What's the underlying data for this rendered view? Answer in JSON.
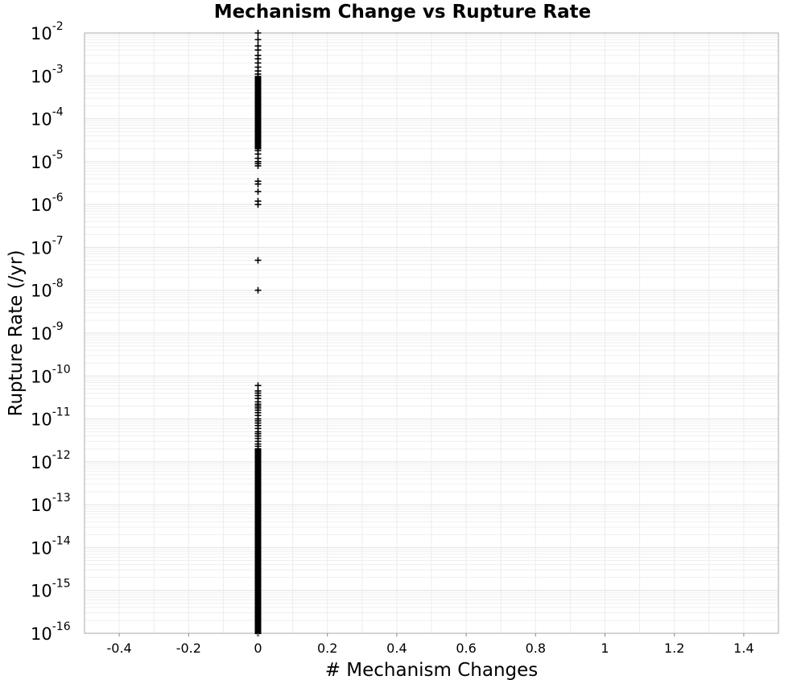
{
  "chart_data": {
    "type": "scatter",
    "title": "Mechanism Change vs Rupture Rate",
    "xlabel": "# Mechanism Changes",
    "ylabel": "Rupture Rate (/yr)",
    "x_scale": "linear",
    "y_scale": "log",
    "xlim": [
      -0.5,
      1.5
    ],
    "ylim": [
      1e-16,
      0.01
    ],
    "x_ticks": [
      "-0.4",
      "-0.2",
      "0",
      "0.2",
      "0.4",
      "0.6",
      "0.8",
      "1",
      "1.2",
      "1.4"
    ],
    "x_tick_values": [
      -0.4,
      -0.2,
      0,
      0.2,
      0.4,
      0.6,
      0.8,
      1,
      1.2,
      1.4
    ],
    "y_tick_exponents": [
      -2,
      -3,
      -4,
      -5,
      -6,
      -7,
      -8,
      -9,
      -10,
      -11,
      -12,
      -13,
      -14,
      -15,
      -16
    ],
    "y_tick_base": "10",
    "grid": true,
    "marker": "plus",
    "marker_color": "#000000",
    "series": [
      {
        "x": [
          0,
          0,
          0,
          0,
          0,
          0,
          0,
          0,
          0,
          0,
          0,
          0,
          0,
          0,
          0,
          0,
          0,
          0,
          0,
          0,
          0,
          0,
          0,
          0,
          0,
          0,
          0,
          0,
          0,
          0,
          0,
          0,
          0,
          0,
          0,
          0,
          0,
          0,
          0,
          0,
          0,
          0,
          0,
          0,
          0,
          0,
          0,
          0,
          0,
          0,
          0,
          0,
          0,
          0,
          0,
          0,
          0,
          0,
          0,
          0,
          0,
          0,
          0,
          0,
          0,
          0,
          0,
          0,
          0,
          0,
          0,
          0,
          0,
          0,
          0,
          0,
          0,
          0,
          0,
          0,
          0,
          0,
          0,
          0,
          0,
          0,
          0,
          0,
          0,
          0,
          0,
          0,
          0,
          0,
          0,
          0,
          0,
          0,
          0,
          0,
          0,
          0,
          0,
          0,
          0,
          0,
          0,
          0,
          0,
          0,
          0,
          0,
          0,
          0,
          0,
          0,
          0,
          0,
          0,
          0,
          0,
          0,
          0,
          0,
          0,
          0,
          0,
          0,
          0,
          0,
          0,
          0,
          0,
          0,
          0,
          0,
          0,
          0,
          0,
          0,
          0,
          0,
          0,
          0,
          0,
          0,
          0,
          0,
          0,
          0,
          0,
          0,
          0,
          0,
          0,
          0,
          0,
          0,
          0,
          0,
          0,
          0,
          0,
          0,
          0,
          0
        ],
        "y": [
          0.01,
          0.007,
          0.005,
          0.004,
          0.003,
          0.0025,
          0.002,
          0.0016,
          0.0013,
          0.0011,
          0.0009,
          0.0008,
          0.0007,
          0.0006,
          0.0005,
          0.00045,
          0.0004,
          0.00035,
          0.0003,
          0.00026,
          0.00023,
          0.0002,
          0.00018,
          0.00016,
          0.00014,
          0.00012,
          0.0001,
          9e-05,
          8e-05,
          7e-05,
          6e-05,
          5e-05,
          4.5e-05,
          4e-05,
          3.5e-05,
          3e-05,
          2.6e-05,
          2.2e-05,
          2e-05,
          1.8e-05,
          1.5e-05,
          1.2e-05,
          1e-05,
          9e-06,
          8e-06,
          3.5e-06,
          3e-06,
          2e-06,
          1.2e-06,
          1e-06,
          5e-08,
          1e-08,
          6e-11,
          4.5e-11,
          4e-11,
          3.5e-11,
          3e-11,
          2.5e-11,
          2.2e-11,
          2e-11,
          1.8e-11,
          1.6e-11,
          1.4e-11,
          1.2e-11,
          1e-11,
          9e-12,
          8e-12,
          7e-12,
          6e-12,
          5e-12,
          4.5e-12,
          4e-12,
          3.5e-12,
          3e-12,
          2.6e-12,
          2.3e-12,
          2e-12,
          1.8e-12,
          1.6e-12,
          1.4e-12,
          1.2e-12,
          1e-12,
          9e-13,
          8e-13,
          7e-13,
          6e-13,
          5e-13,
          4.5e-13,
          4e-13,
          3.5e-13,
          3e-13,
          2.6e-13,
          2.3e-13,
          2e-13,
          1.8e-13,
          1.6e-13,
          1.4e-13,
          1.2e-13,
          1e-13,
          9e-14,
          8e-14,
          7e-14,
          6e-14,
          5e-14,
          4.5e-14,
          4e-14,
          3.5e-14,
          3e-14,
          2.6e-14,
          2.3e-14,
          2e-14,
          1.8e-14,
          1.6e-14,
          1.4e-14,
          1.2e-14,
          1e-14,
          9e-15,
          8e-15,
          7e-15,
          6e-15,
          5e-15,
          4.5e-15,
          4e-15,
          3.5e-15,
          3e-15,
          2.6e-15,
          2.3e-15,
          2e-15,
          1.8e-15,
          1.6e-15,
          1.4e-15,
          1.2e-15,
          1e-15,
          9e-16,
          8e-16,
          7e-16,
          6e-16,
          5e-16,
          4.5e-16,
          4e-16,
          3.5e-16,
          3e-16,
          2.6e-16,
          2.3e-16,
          2e-16,
          1.8e-16,
          1.6e-16,
          1.4e-16,
          1.3e-16,
          1.2e-16,
          1.1e-16,
          1.05e-16,
          1e-16,
          1e-16,
          1e-16,
          1e-16,
          1e-16,
          1e-16,
          1e-16,
          1e-16,
          1e-16,
          1e-16,
          1e-16,
          1e-16,
          1e-16,
          1e-16
        ]
      }
    ]
  }
}
